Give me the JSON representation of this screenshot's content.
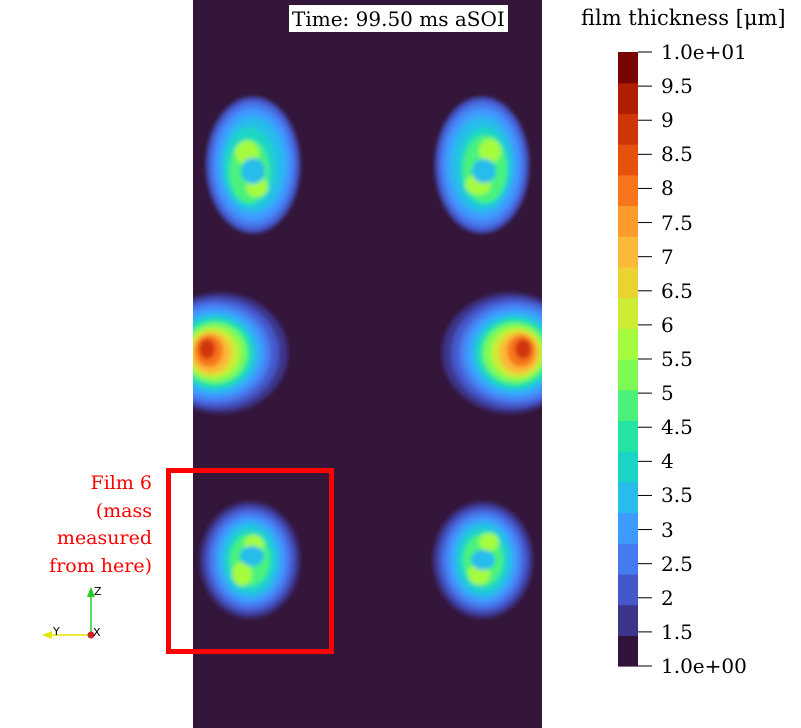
{
  "time_label": "Time: 99.50 ms aSOI",
  "colorbar": {
    "title": "film thickness [μm]",
    "min": 1,
    "max": 10,
    "tick_labels": [
      "1.0e+01",
      "9.5",
      "9",
      "8.5",
      "8",
      "7.5",
      "7",
      "6.5",
      "6",
      "5.5",
      "5",
      "4.5",
      "4",
      "3.5",
      "3",
      "2.5",
      "2",
      "1.5",
      "1.0e+00"
    ],
    "band_colors": [
      "#30123b",
      "#3d358b",
      "#4458cb",
      "#467bf0",
      "#3e9bfe",
      "#28bceb",
      "#1ad5c6",
      "#24e3a3",
      "#4af27b",
      "#7dfb54",
      "#a4fc3c",
      "#cced34",
      "#ead232",
      "#fbb938",
      "#fe9b2d",
      "#f8761b",
      "#e7510b",
      "#d0350a",
      "#b01e03",
      "#7a0403"
    ]
  },
  "annotation": {
    "lines": [
      "Film 6",
      "(mass",
      "measured",
      "from here)"
    ],
    "color": "#ff0000"
  },
  "axes_triad": {
    "z_label": "Z",
    "y_label": "Y",
    "x_label": "X"
  },
  "colors": {
    "background_film": "#34163a",
    "highlight_box": "#ff0000"
  }
}
